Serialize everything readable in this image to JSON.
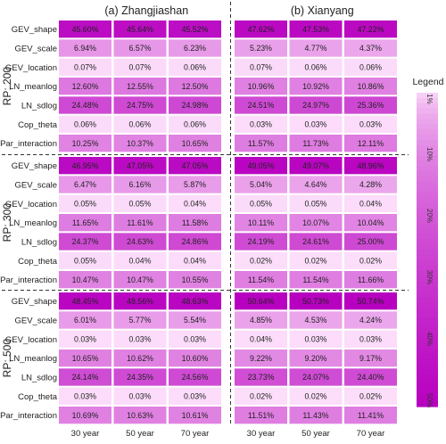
{
  "chart_data": {
    "type": "heatmap",
    "panels": [
      {
        "title": "(a) Zhangjiashan"
      },
      {
        "title": "(b) Xianyang"
      }
    ],
    "columns": [
      "30 year",
      "50 year",
      "70 year"
    ],
    "row_labels": [
      "GEV_shape",
      "GEV_scale",
      "GEV_location",
      "LN_meanlog",
      "LN_sdlog",
      "Cop_theta",
      "Par_interaction"
    ],
    "groups": [
      {
        "label": "RP: 200",
        "values": [
          [
            45.6,
            45.64,
            45.52,
            47.62,
            47.53,
            47.22
          ],
          [
            6.94,
            6.57,
            6.23,
            5.23,
            4.77,
            4.37
          ],
          [
            0.07,
            0.07,
            0.06,
            0.07,
            0.06,
            0.06
          ],
          [
            12.6,
            12.55,
            12.5,
            10.96,
            10.92,
            10.86
          ],
          [
            24.48,
            24.75,
            24.98,
            24.51,
            24.97,
            25.36
          ],
          [
            0.06,
            0.06,
            0.06,
            0.03,
            0.03,
            0.03
          ],
          [
            10.25,
            10.37,
            10.65,
            11.57,
            11.73,
            12.11
          ]
        ],
        "labels": [
          [
            "45.60%",
            "45.64%",
            "45.52%",
            "47.62%",
            "47.53%",
            "47.22%"
          ],
          [
            "6.94%",
            "6.57%",
            "6.23%",
            "5.23%",
            "4.77%",
            "4.37%"
          ],
          [
            "0.07%",
            "0.07%",
            "0.06%",
            "0.07%",
            "0.06%",
            "0.06%"
          ],
          [
            "12.60%",
            "12.55%",
            "12.50%",
            "10.96%",
            "10.92%",
            "10.86%"
          ],
          [
            "24.48%",
            "24.75%",
            "24.98%",
            "24.51%",
            "24.97%",
            "25.36%"
          ],
          [
            "0.06%",
            "0.06%",
            "0.06%",
            "0.03%",
            "0.03%",
            "0.03%"
          ],
          [
            "10.25%",
            "10.37%",
            "10.65%",
            "11.57%",
            "11.73%",
            "12.11%"
          ]
        ]
      },
      {
        "label": "RP: 300",
        "values": [
          [
            46.95,
            47.05,
            47.05,
            49.05,
            49.07,
            48.96
          ],
          [
            6.47,
            6.16,
            5.87,
            5.04,
            4.64,
            4.28
          ],
          [
            0.05,
            0.05,
            0.04,
            0.05,
            0.05,
            0.04
          ],
          [
            11.65,
            11.61,
            11.58,
            10.11,
            10.07,
            10.04
          ],
          [
            24.37,
            24.63,
            24.86,
            24.19,
            24.61,
            25.0
          ],
          [
            0.05,
            0.04,
            0.04,
            0.02,
            0.02,
            0.02
          ],
          [
            10.47,
            10.47,
            10.55,
            11.54,
            11.54,
            11.66
          ]
        ],
        "labels": [
          [
            "46.95%",
            "47.05%",
            "47.05%",
            "49.05%",
            "49.07%",
            "48.96%"
          ],
          [
            "6.47%",
            "6.16%",
            "5.87%",
            "5.04%",
            "4.64%",
            "4.28%"
          ],
          [
            "0.05%",
            "0.05%",
            "0.04%",
            "0.05%",
            "0.05%",
            "0.04%"
          ],
          [
            "11.65%",
            "11.61%",
            "11.58%",
            "10.11%",
            "10.07%",
            "10.04%"
          ],
          [
            "24.37%",
            "24.63%",
            "24.86%",
            "24.19%",
            "24.61%",
            "25.00%"
          ],
          [
            "0.05%",
            "0.04%",
            "0.04%",
            "0.02%",
            "0.02%",
            "0.02%"
          ],
          [
            "10.47%",
            "10.47%",
            "10.55%",
            "11.54%",
            "11.54%",
            "11.66%"
          ]
        ]
      },
      {
        "label": "RP: 500",
        "values": [
          [
            48.45,
            48.56,
            48.63,
            50.64,
            50.73,
            50.74
          ],
          [
            6.01,
            5.77,
            5.54,
            4.85,
            4.53,
            4.24
          ],
          [
            0.03,
            0.03,
            0.03,
            0.04,
            0.03,
            0.03
          ],
          [
            10.65,
            10.62,
            10.6,
            9.22,
            9.2,
            9.17
          ],
          [
            24.14,
            24.35,
            24.56,
            23.73,
            24.07,
            24.4
          ],
          [
            0.03,
            0.03,
            0.03,
            0.02,
            0.02,
            0.02
          ],
          [
            10.69,
            10.63,
            10.61,
            11.51,
            11.43,
            11.41
          ]
        ],
        "labels": [
          [
            "48.45%",
            "48.56%",
            "48.63%",
            "50.64%",
            "50.73%",
            "50.74%"
          ],
          [
            "6.01%",
            "5.77%",
            "5.54%",
            "4.85%",
            "4.53%",
            "4.24%"
          ],
          [
            "0.03%",
            "0.03%",
            "0.03%",
            "0.04%",
            "0.03%",
            "0.03%"
          ],
          [
            "10.65%",
            "10.62%",
            "10.60%",
            "9.22%",
            "9.20%",
            "9.17%"
          ],
          [
            "24.14%",
            "24.35%",
            "24.56%",
            "23.73%",
            "24.07%",
            "24.40%"
          ],
          [
            "0.03%",
            "0.03%",
            "0.03%",
            "0.02%",
            "0.02%",
            "0.02%"
          ],
          [
            "10.69%",
            "10.63%",
            "10.61%",
            "11.51%",
            "11.43%",
            "11.41%"
          ]
        ]
      }
    ],
    "legend": {
      "title": "Legend",
      "ticks": [
        {
          "value": 1,
          "label": "1%"
        },
        {
          "value": 10,
          "label": "10%"
        },
        {
          "value": 20,
          "label": "20%"
        },
        {
          "value": 30,
          "label": "30%"
        },
        {
          "value": 40,
          "label": "40%"
        },
        {
          "value": 50,
          "label": "50%"
        }
      ],
      "range": [
        0,
        51
      ],
      "placement": "right"
    },
    "color_low": "#fde0fb",
    "color_high": "#b800c0"
  }
}
